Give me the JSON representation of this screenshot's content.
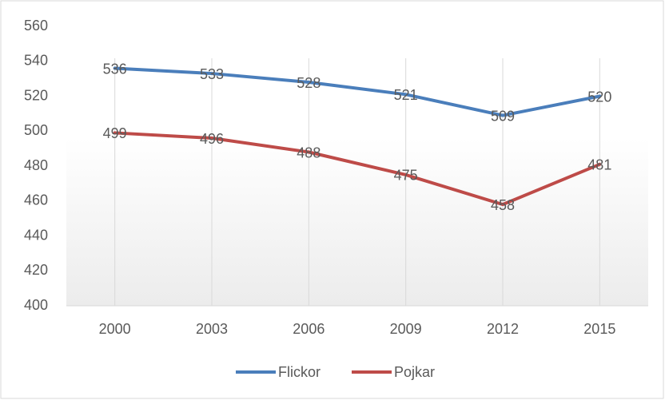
{
  "chart_data": {
    "type": "line",
    "categories": [
      "2000",
      "2003",
      "2006",
      "2009",
      "2012",
      "2015"
    ],
    "series": [
      {
        "name": "Flickor",
        "color": "#4a7ebb",
        "values": [
          536,
          533,
          528,
          521,
          509,
          520
        ]
      },
      {
        "name": "Pojkar",
        "color": "#be4b48",
        "values": [
          499,
          496,
          488,
          475,
          458,
          481
        ]
      }
    ],
    "ylim": [
      400,
      560
    ],
    "yticks": [
      400,
      420,
      440,
      460,
      480,
      500,
      520,
      540,
      560
    ],
    "grid": true,
    "legend": "bottom"
  }
}
